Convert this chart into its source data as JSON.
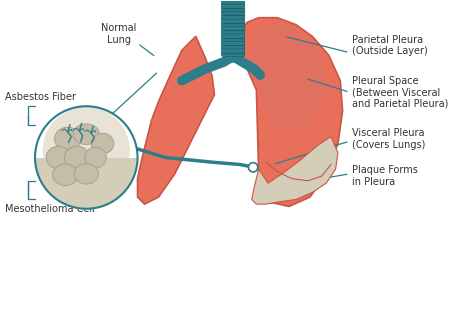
{
  "bg_color": "#ffffff",
  "lung_color": "#E8705A",
  "lung_dark": "#C95545",
  "lung_inner": "#D96050",
  "trachea_color": "#2E7D8A",
  "trachea_dark": "#1a5f6a",
  "plaque_color": "#D4CDB8",
  "circle_bg": "#D4CDB8",
  "cell_color": "#C4BDA8",
  "cell_edge": "#A8A090",
  "line_color": "#2E7D8A",
  "text_color": "#333333",
  "labels": {
    "asbestos_fiber": "Asbestos Fiber",
    "normal_lung": "Normal\nLung",
    "parietal_pleura": "Parietal Pleura\n(Outside Layer)",
    "pleural_space": "Pleural Space\n(Between Visceral\nand Parietal Pleura)",
    "visceral_pleura": "Visceral Pleura\n(Covers Lungs)",
    "plaque_forms": "Plaque Forms\nin Pleura",
    "meso_cell": "Mesothelioma Cell"
  },
  "figsize": [
    4.74,
    3.29
  ],
  "dpi": 100
}
